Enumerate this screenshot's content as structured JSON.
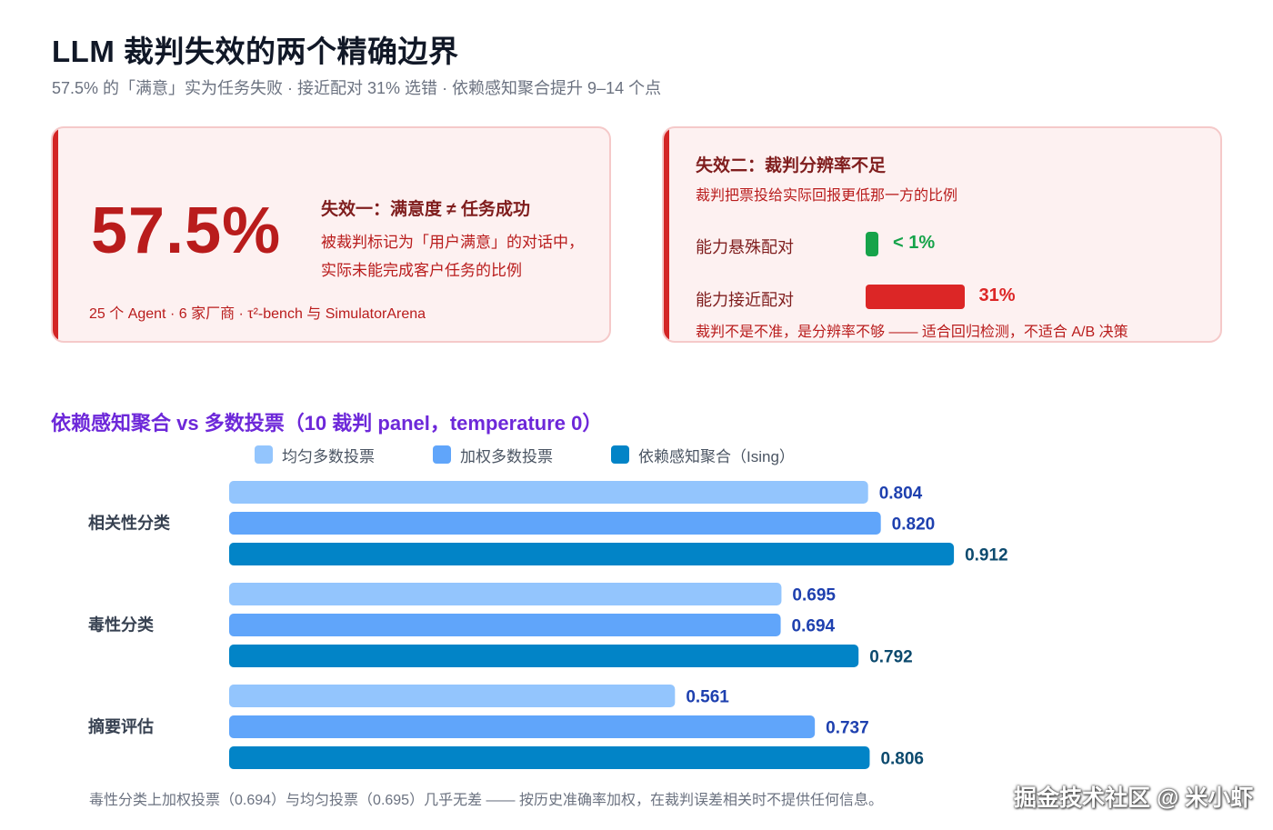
{
  "header": {
    "title": "LLM 裁判失效的两个精确边界",
    "subtitle": "57.5% 的「满意」实为任务失败 · 接近配对 31% 选错 · 依赖感知聚合提升 9–14 个点"
  },
  "failure_one": {
    "big_number": "57.5%",
    "title": "失效一：满意度 ≠ 任务成功",
    "desc_line1": "被裁判标记为「用户满意」的对话中，",
    "desc_line2": "实际未能完成客户任务的比例",
    "note": "25 个 Agent · 6 家厂商 · τ²-bench 与 SimulatorArena"
  },
  "failure_two": {
    "title": "失效二：裁判分辨率不足",
    "subtitle": "裁判把票投给实际回报更低那一方的比例",
    "rows": [
      {
        "label": "能力悬殊配对",
        "value_text": "< 1%",
        "value": 1,
        "color": "#16a34a"
      },
      {
        "label": "能力接近配对",
        "value_text": "31%",
        "value": 31,
        "color": "#dc2626"
      }
    ],
    "note": "裁判不是不准，是分辨率不够 —— 适合回归检测，不适合 A/B 决策"
  },
  "chart_title": "依赖感知聚合 vs 多数投票（10 裁判 panel，temperature 0）",
  "footnote": "毒性分类上加权投票（0.694）与均匀投票（0.695）几乎无差 —— 按历史准确率加权，在裁判误差相关时不提供任何信息。",
  "watermark": "掘金技术社区 @ 米小虾",
  "colors": {
    "accent_red": "#d32525",
    "series_light": "#93c5fd",
    "series_mid": "#60a5fa",
    "series_dark": "#0284c7"
  },
  "chart_data": {
    "type": "bar",
    "orientation": "horizontal",
    "categories": [
      "相关性分类",
      "毒性分类",
      "摘要评估"
    ],
    "series": [
      {
        "name": "均匀多数投票",
        "values": [
          0.804,
          0.695,
          0.561
        ],
        "color": "#93c5fd",
        "label_color": "#1e40af"
      },
      {
        "name": "加权多数投票",
        "values": [
          0.82,
          0.694,
          0.737
        ],
        "color": "#60a5fa",
        "label_color": "#1e40af"
      },
      {
        "name": "依赖感知聚合（Ising）",
        "values": [
          0.912,
          0.792,
          0.806
        ],
        "color": "#0284c7",
        "label_color": "#0c4a6e"
      }
    ],
    "value_labels": [
      [
        "0.804",
        "0.695",
        "0.561"
      ],
      [
        "0.820",
        "0.694",
        "0.737"
      ],
      [
        "0.912",
        "0.792",
        "0.806"
      ]
    ],
    "xlim": [
      0,
      1
    ],
    "grid": false,
    "legend_position": "top"
  }
}
